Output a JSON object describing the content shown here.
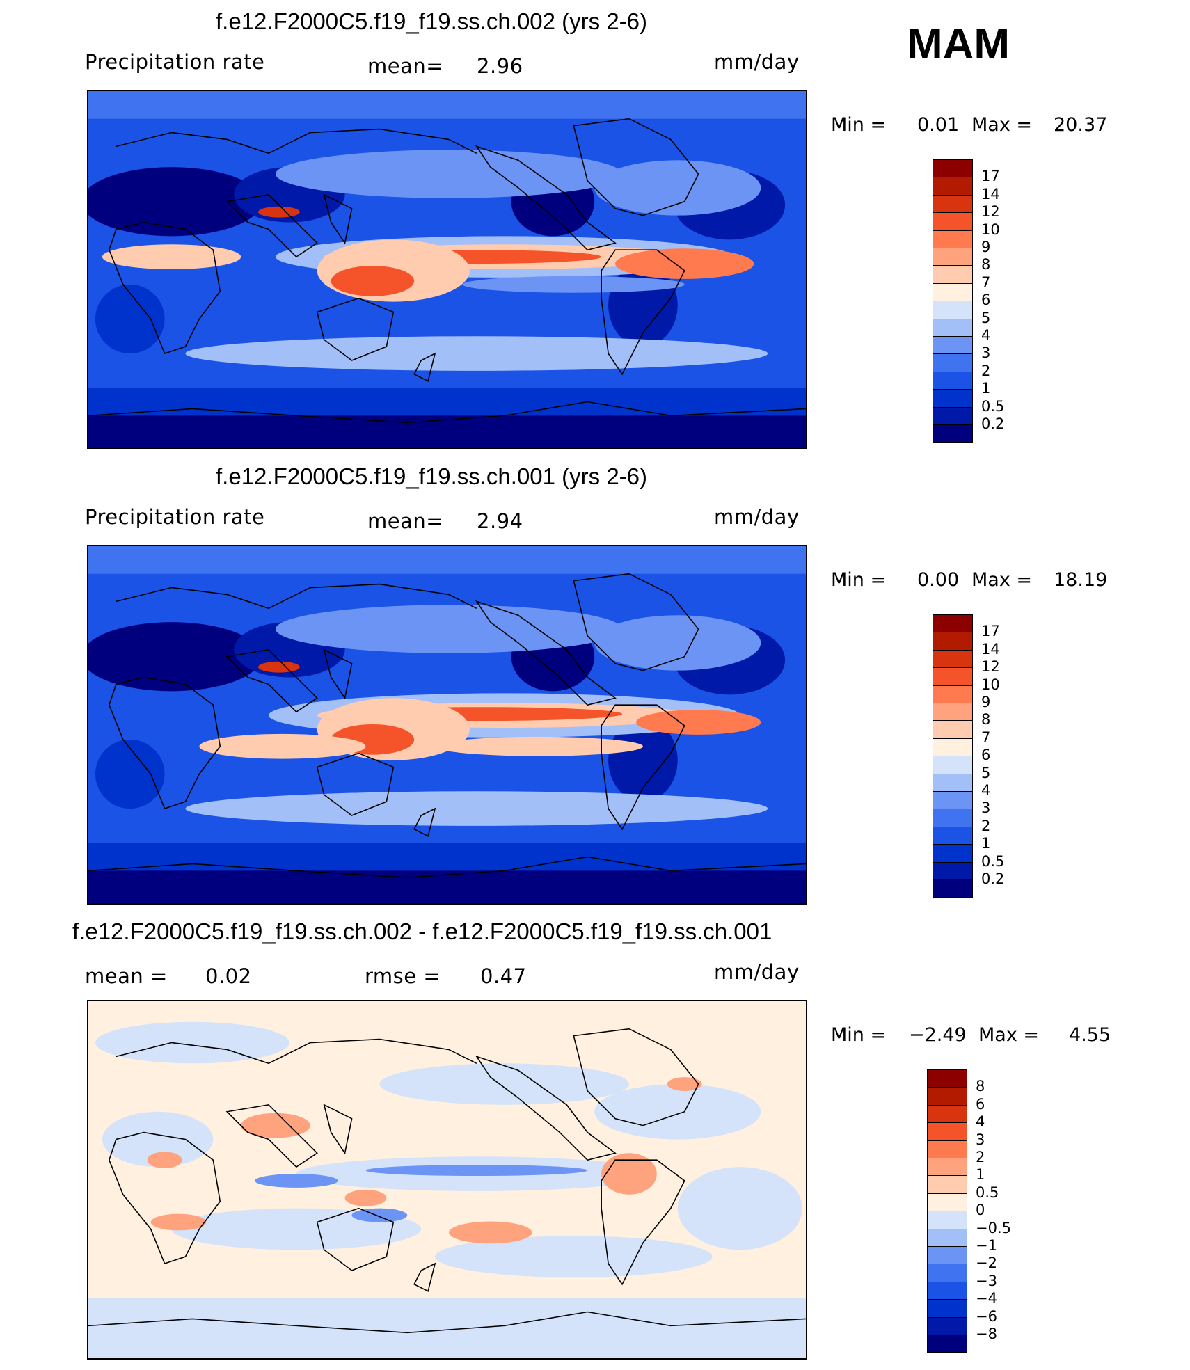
{
  "season": "MAM",
  "colors": {
    "precip_scale": [
      "#00007f",
      "#0019a8",
      "#0033cc",
      "#1a53e6",
      "#3f73f0",
      "#6b94f5",
      "#a3bff7",
      "#d4e3fa",
      "#fff0e0",
      "#ffccb0",
      "#ffa37f",
      "#ff7a4f",
      "#f5542a",
      "#d93410",
      "#b31b00",
      "#8c0000"
    ],
    "diff_scale": [
      "#00007f",
      "#0019a8",
      "#0033cc",
      "#1a53e6",
      "#3f73f0",
      "#6b94f5",
      "#a3bff7",
      "#d4e3fa",
      "#fff0e0",
      "#ffccb0",
      "#ffa37f",
      "#ff7a4f",
      "#f5542a",
      "#d93410",
      "#b31b00",
      "#8c0000"
    ]
  },
  "panels": [
    {
      "title": "f.e12.F2000C5.f19_f19.ss.ch.002 (yrs 2-6)",
      "left_label": "Precipitation rate",
      "mid_label": "mean=",
      "mid_value": "2.96",
      "units": "mm/day",
      "min_label": "Min =",
      "min_value": "0.01",
      "max_label": "Max =",
      "max_value": "20.37",
      "colorbar_labels": [
        "17",
        "14",
        "12",
        "10",
        "9",
        "8",
        "7",
        "6",
        "5",
        "4",
        "3",
        "2",
        "1",
        "0.5",
        "0.2"
      ]
    },
    {
      "title": "f.e12.F2000C5.f19_f19.ss.ch.001 (yrs 2-6)",
      "left_label": "Precipitation rate",
      "mid_label": "mean=",
      "mid_value": "2.94",
      "units": "mm/day",
      "min_label": "Min =",
      "min_value": "0.00",
      "max_label": "Max =",
      "max_value": "18.19",
      "colorbar_labels": [
        "17",
        "14",
        "12",
        "10",
        "9",
        "8",
        "7",
        "6",
        "5",
        "4",
        "3",
        "2",
        "1",
        "0.5",
        "0.2"
      ]
    },
    {
      "title": "f.e12.F2000C5.f19_f19.ss.ch.002 - f.e12.F2000C5.f19_f19.ss.ch.001",
      "left_label": "mean =",
      "left_value": "0.02",
      "mid_label": "rmse =",
      "mid_value": "0.47",
      "units": "mm/day",
      "min_label": "Min =",
      "min_value": "−2.49",
      "max_label": "Max =",
      "max_value": "4.55",
      "colorbar_labels": [
        "8",
        "6",
        "4",
        "3",
        "2",
        "1",
        "0.5",
        "0",
        "−0.5",
        "−1",
        "−2",
        "−3",
        "−4",
        "−6",
        "−8"
      ]
    }
  ]
}
